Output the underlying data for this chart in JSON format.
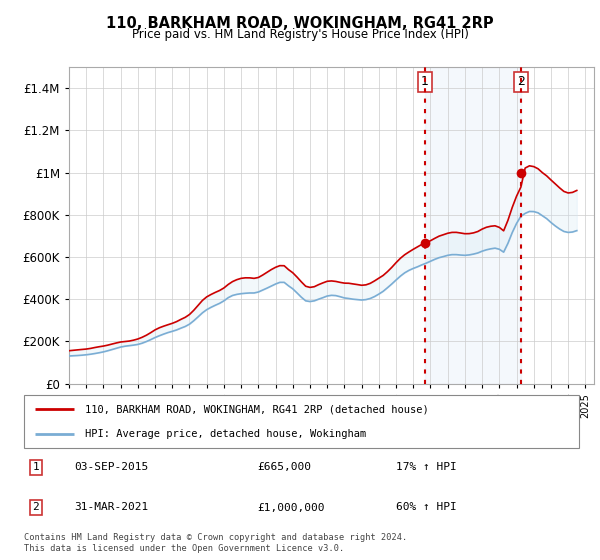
{
  "title": "110, BARKHAM ROAD, WOKINGHAM, RG41 2RP",
  "subtitle": "Price paid vs. HM Land Registry's House Price Index (HPI)",
  "legend_line1": "110, BARKHAM ROAD, WOKINGHAM, RG41 2RP (detached house)",
  "legend_line2": "HPI: Average price, detached house, Wokingham",
  "sale1_label": "1",
  "sale1_date": "03-SEP-2015",
  "sale1_price": "£665,000",
  "sale1_hpi": "17% ↑ HPI",
  "sale1_year": 2015.67,
  "sale1_value": 665000,
  "sale2_label": "2",
  "sale2_date": "31-MAR-2021",
  "sale2_price": "£1,000,000",
  "sale2_hpi": "60% ↑ HPI",
  "sale2_year": 2021.25,
  "sale2_value": 1000000,
  "footer1": "Contains HM Land Registry data © Crown copyright and database right 2024.",
  "footer2": "This data is licensed under the Open Government Licence v3.0.",
  "line_color_red": "#cc0000",
  "line_color_blue": "#7aadd4",
  "fill_color": "#d6e8f5",
  "marker_color_red": "#cc0000",
  "vline_color": "#cc0000",
  "ylim": [
    0,
    1500000
  ],
  "yticks": [
    0,
    200000,
    400000,
    600000,
    800000,
    1000000,
    1200000,
    1400000
  ],
  "xmin": 1995,
  "xmax": 2025.5,
  "hpi_index": [
    100.0,
    101.0,
    101.8,
    103.0,
    104.5,
    106.5,
    109.0,
    111.8,
    115.0,
    119.0,
    123.5,
    128.0,
    132.5,
    135.5,
    137.5,
    139.5,
    142.0,
    146.5,
    152.5,
    159.5,
    167.0,
    173.5,
    179.5,
    185.0,
    189.5,
    194.5,
    201.0,
    207.0,
    215.5,
    228.0,
    242.0,
    256.5,
    268.0,
    276.5,
    284.0,
    291.0,
    300.0,
    311.5,
    319.5,
    323.5,
    326.0,
    327.5,
    328.5,
    328.5,
    332.0,
    339.0,
    346.0,
    353.5,
    361.0,
    367.0,
    367.0,
    354.5,
    343.5,
    328.5,
    313.0,
    300.0,
    297.5,
    300.0,
    306.0,
    311.5,
    317.5,
    320.0,
    319.0,
    315.0,
    310.5,
    308.5,
    306.0,
    304.5,
    303.0,
    304.5,
    308.5,
    315.5,
    324.5,
    334.5,
    347.5,
    361.0,
    375.5,
    389.5,
    401.5,
    410.5,
    417.5,
    423.5,
    430.5,
    436.5,
    443.5,
    450.5,
    456.5,
    460.5,
    465.0,
    467.5,
    467.5,
    466.0,
    465.0,
    466.5,
    469.5,
    473.5,
    480.0,
    485.0,
    488.5,
    491.0,
    487.0,
    476.5,
    508.5,
    547.5,
    580.5,
    606.5,
    617.0,
    624.0,
    623.5,
    619.0,
    608.5,
    598.0,
    584.0,
    571.5,
    560.5,
    551.5,
    548.0,
    549.5,
    554.5
  ],
  "hpi_years": [
    1995.0,
    1995.25,
    1995.5,
    1995.75,
    1996.0,
    1996.25,
    1996.5,
    1996.75,
    1997.0,
    1997.25,
    1997.5,
    1997.75,
    1998.0,
    1998.25,
    1998.5,
    1998.75,
    1999.0,
    1999.25,
    1999.5,
    1999.75,
    2000.0,
    2000.25,
    2000.5,
    2000.75,
    2001.0,
    2001.25,
    2001.5,
    2001.75,
    2002.0,
    2002.25,
    2002.5,
    2002.75,
    2003.0,
    2003.25,
    2003.5,
    2003.75,
    2004.0,
    2004.25,
    2004.5,
    2004.75,
    2005.0,
    2005.25,
    2005.5,
    2005.75,
    2006.0,
    2006.25,
    2006.5,
    2006.75,
    2007.0,
    2007.25,
    2007.5,
    2007.75,
    2008.0,
    2008.25,
    2008.5,
    2008.75,
    2009.0,
    2009.25,
    2009.5,
    2009.75,
    2010.0,
    2010.25,
    2010.5,
    2010.75,
    2011.0,
    2011.25,
    2011.5,
    2011.75,
    2012.0,
    2012.25,
    2012.5,
    2012.75,
    2013.0,
    2013.25,
    2013.5,
    2013.75,
    2014.0,
    2014.25,
    2014.5,
    2014.75,
    2015.0,
    2015.25,
    2015.5,
    2015.75,
    2016.0,
    2016.25,
    2016.5,
    2016.75,
    2017.0,
    2017.25,
    2017.5,
    2017.75,
    2018.0,
    2018.25,
    2018.5,
    2018.75,
    2019.0,
    2019.25,
    2019.5,
    2019.75,
    2020.0,
    2020.25,
    2020.5,
    2020.75,
    2021.0,
    2021.25,
    2021.5,
    2021.75,
    2022.0,
    2022.25,
    2022.5,
    2022.75,
    2023.0,
    2023.25,
    2023.5,
    2023.75,
    2024.0,
    2024.25,
    2024.5
  ]
}
